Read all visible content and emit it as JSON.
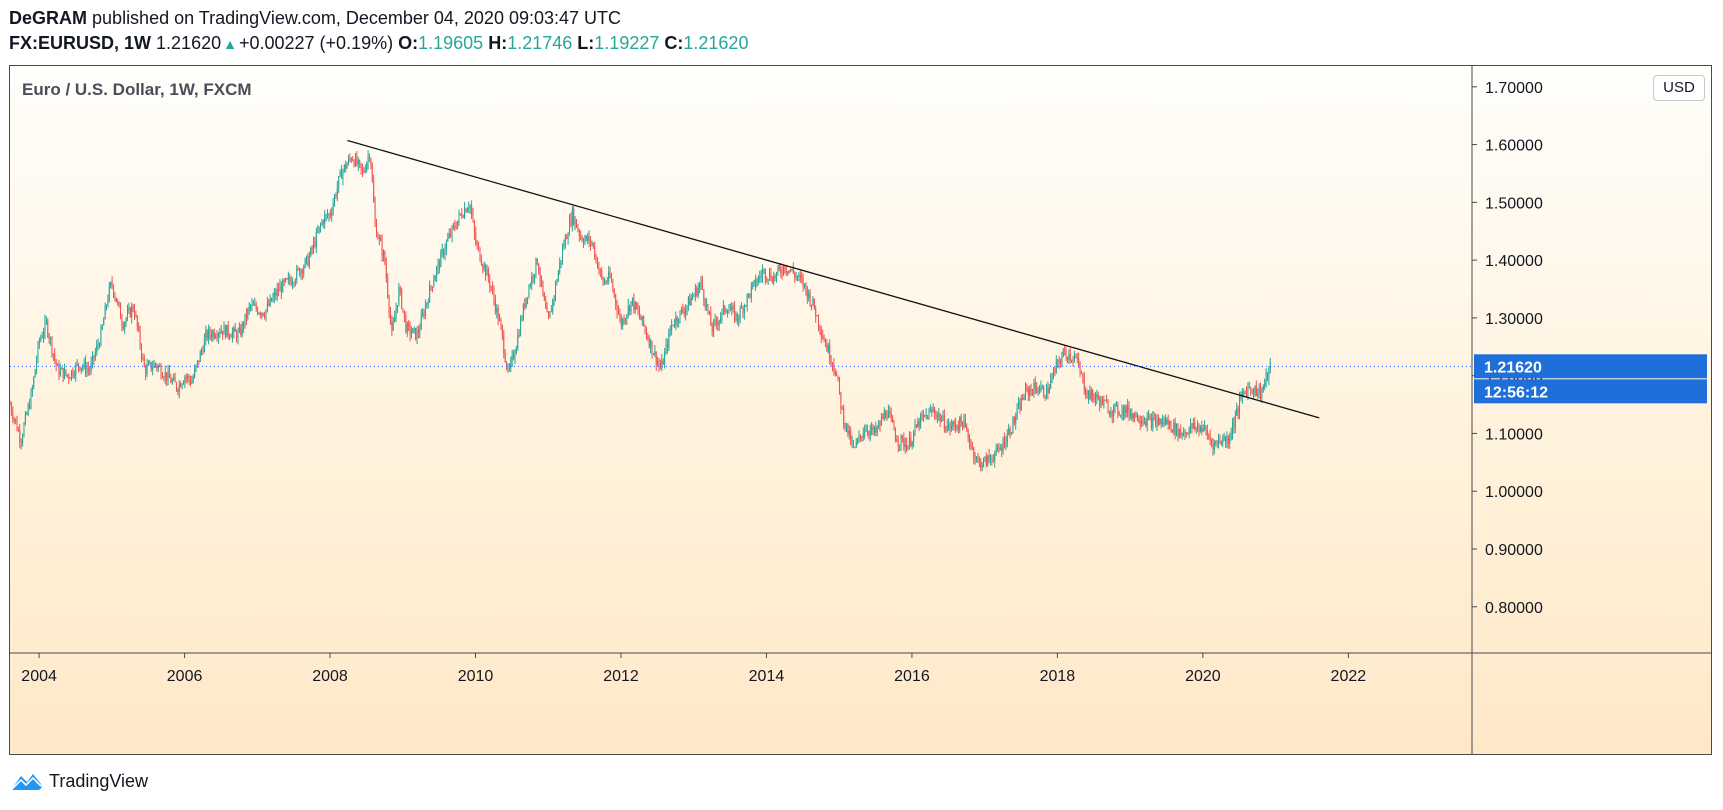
{
  "header": {
    "author": "DeGRAM",
    "published_text": "published on TradingView.com, December 04, 2020 09:03:47 UTC",
    "symbol": "FX:EURUSD, 1W",
    "last_price": "1.21620",
    "change": "+0.00227 (+0.19%)",
    "open_label": "O:",
    "open": "1.19605",
    "high_label": "H:",
    "high": "1.21746",
    "low_label": "L:",
    "low": "1.19227",
    "close_label": "C:",
    "close": "1.21620"
  },
  "footer": {
    "brand": "TradingView"
  },
  "colors": {
    "up": "#26a69a",
    "down": "#ef5350",
    "price_label_bg": "#1e6fd9",
    "trendline": "#111111"
  },
  "chart_data": {
    "type": "candlestick",
    "title": "Euro / U.S. Dollar, 1W, FXCM",
    "currency": "USD",
    "x_ticks": [
      "2004",
      "2006",
      "2008",
      "2010",
      "2012",
      "2014",
      "2016",
      "2018",
      "2020",
      "2022"
    ],
    "y_ticks": [
      "0.80000",
      "0.90000",
      "1.00000",
      "1.10000",
      "1.20000",
      "1.30000",
      "1.40000",
      "1.50000",
      "1.60000",
      "1.70000"
    ],
    "xlim": [
      2003.6,
      2023.7
    ],
    "ylim": [
      0.72,
      1.736
    ],
    "last_price": 1.2162,
    "last_price_label": "1.21620",
    "countdown_label": "12:56:12",
    "trendline": {
      "from": [
        2008.24,
        1.607
      ],
      "to": [
        2021.6,
        1.127
      ]
    },
    "price_path": [
      [
        2003.6,
        1.15
      ],
      [
        2003.75,
        1.09
      ],
      [
        2003.9,
        1.17
      ],
      [
        2004.0,
        1.26
      ],
      [
        2004.1,
        1.29
      ],
      [
        2004.25,
        1.21
      ],
      [
        2004.4,
        1.2
      ],
      [
        2004.55,
        1.22
      ],
      [
        2004.7,
        1.21
      ],
      [
        2004.85,
        1.27
      ],
      [
        2004.95,
        1.34
      ],
      [
        2005.0,
        1.36
      ],
      [
        2005.15,
        1.29
      ],
      [
        2005.3,
        1.32
      ],
      [
        2005.45,
        1.21
      ],
      [
        2005.6,
        1.22
      ],
      [
        2005.75,
        1.2
      ],
      [
        2005.9,
        1.18
      ],
      [
        2006.0,
        1.2
      ],
      [
        2006.1,
        1.19
      ],
      [
        2006.3,
        1.27
      ],
      [
        2006.5,
        1.28
      ],
      [
        2006.75,
        1.27
      ],
      [
        2006.9,
        1.32
      ],
      [
        2007.1,
        1.31
      ],
      [
        2007.3,
        1.35
      ],
      [
        2007.5,
        1.37
      ],
      [
        2007.7,
        1.4
      ],
      [
        2007.9,
        1.47
      ],
      [
        2008.0,
        1.48
      ],
      [
        2008.15,
        1.55
      ],
      [
        2008.3,
        1.58
      ],
      [
        2008.45,
        1.55
      ],
      [
        2008.55,
        1.59
      ],
      [
        2008.62,
        1.46
      ],
      [
        2008.75,
        1.4
      ],
      [
        2008.85,
        1.27
      ],
      [
        2008.95,
        1.35
      ],
      [
        2009.05,
        1.28
      ],
      [
        2009.2,
        1.27
      ],
      [
        2009.4,
        1.36
      ],
      [
        2009.6,
        1.43
      ],
      [
        2009.8,
        1.48
      ],
      [
        2009.92,
        1.5
      ],
      [
        2010.0,
        1.43
      ],
      [
        2010.2,
        1.36
      ],
      [
        2010.35,
        1.28
      ],
      [
        2010.45,
        1.2
      ],
      [
        2010.55,
        1.25
      ],
      [
        2010.7,
        1.34
      ],
      [
        2010.85,
        1.4
      ],
      [
        2010.95,
        1.32
      ],
      [
        2011.0,
        1.29
      ],
      [
        2011.2,
        1.42
      ],
      [
        2011.33,
        1.48
      ],
      [
        2011.45,
        1.44
      ],
      [
        2011.6,
        1.43
      ],
      [
        2011.75,
        1.36
      ],
      [
        2011.85,
        1.37
      ],
      [
        2012.0,
        1.29
      ],
      [
        2012.15,
        1.33
      ],
      [
        2012.3,
        1.29
      ],
      [
        2012.45,
        1.24
      ],
      [
        2012.55,
        1.21
      ],
      [
        2012.7,
        1.29
      ],
      [
        2012.9,
        1.32
      ],
      [
        2013.1,
        1.36
      ],
      [
        2013.25,
        1.28
      ],
      [
        2013.45,
        1.32
      ],
      [
        2013.6,
        1.3
      ],
      [
        2013.8,
        1.35
      ],
      [
        2013.95,
        1.38
      ],
      [
        2014.1,
        1.37
      ],
      [
        2014.25,
        1.39
      ],
      [
        2014.35,
        1.38
      ],
      [
        2014.5,
        1.36
      ],
      [
        2014.65,
        1.32
      ],
      [
        2014.8,
        1.26
      ],
      [
        2014.95,
        1.21
      ],
      [
        2015.05,
        1.13
      ],
      [
        2015.2,
        1.07
      ],
      [
        2015.35,
        1.11
      ],
      [
        2015.5,
        1.1
      ],
      [
        2015.65,
        1.14
      ],
      [
        2015.8,
        1.09
      ],
      [
        2015.95,
        1.08
      ],
      [
        2016.1,
        1.12
      ],
      [
        2016.3,
        1.14
      ],
      [
        2016.5,
        1.11
      ],
      [
        2016.7,
        1.12
      ],
      [
        2016.9,
        1.05
      ],
      [
        2017.0,
        1.05
      ],
      [
        2017.2,
        1.07
      ],
      [
        2017.4,
        1.12
      ],
      [
        2017.55,
        1.17
      ],
      [
        2017.7,
        1.18
      ],
      [
        2017.85,
        1.17
      ],
      [
        2018.0,
        1.22
      ],
      [
        2018.1,
        1.24
      ],
      [
        2018.25,
        1.23
      ],
      [
        2018.4,
        1.17
      ],
      [
        2018.55,
        1.16
      ],
      [
        2018.75,
        1.14
      ],
      [
        2018.95,
        1.14
      ],
      [
        2019.1,
        1.13
      ],
      [
        2019.3,
        1.12
      ],
      [
        2019.5,
        1.12
      ],
      [
        2019.7,
        1.1
      ],
      [
        2019.85,
        1.11
      ],
      [
        2020.0,
        1.11
      ],
      [
        2020.15,
        1.08
      ],
      [
        2020.25,
        1.09
      ],
      [
        2020.35,
        1.09
      ],
      [
        2020.45,
        1.13
      ],
      [
        2020.55,
        1.17
      ],
      [
        2020.65,
        1.18
      ],
      [
        2020.8,
        1.17
      ],
      [
        2020.93,
        1.216
      ]
    ]
  }
}
